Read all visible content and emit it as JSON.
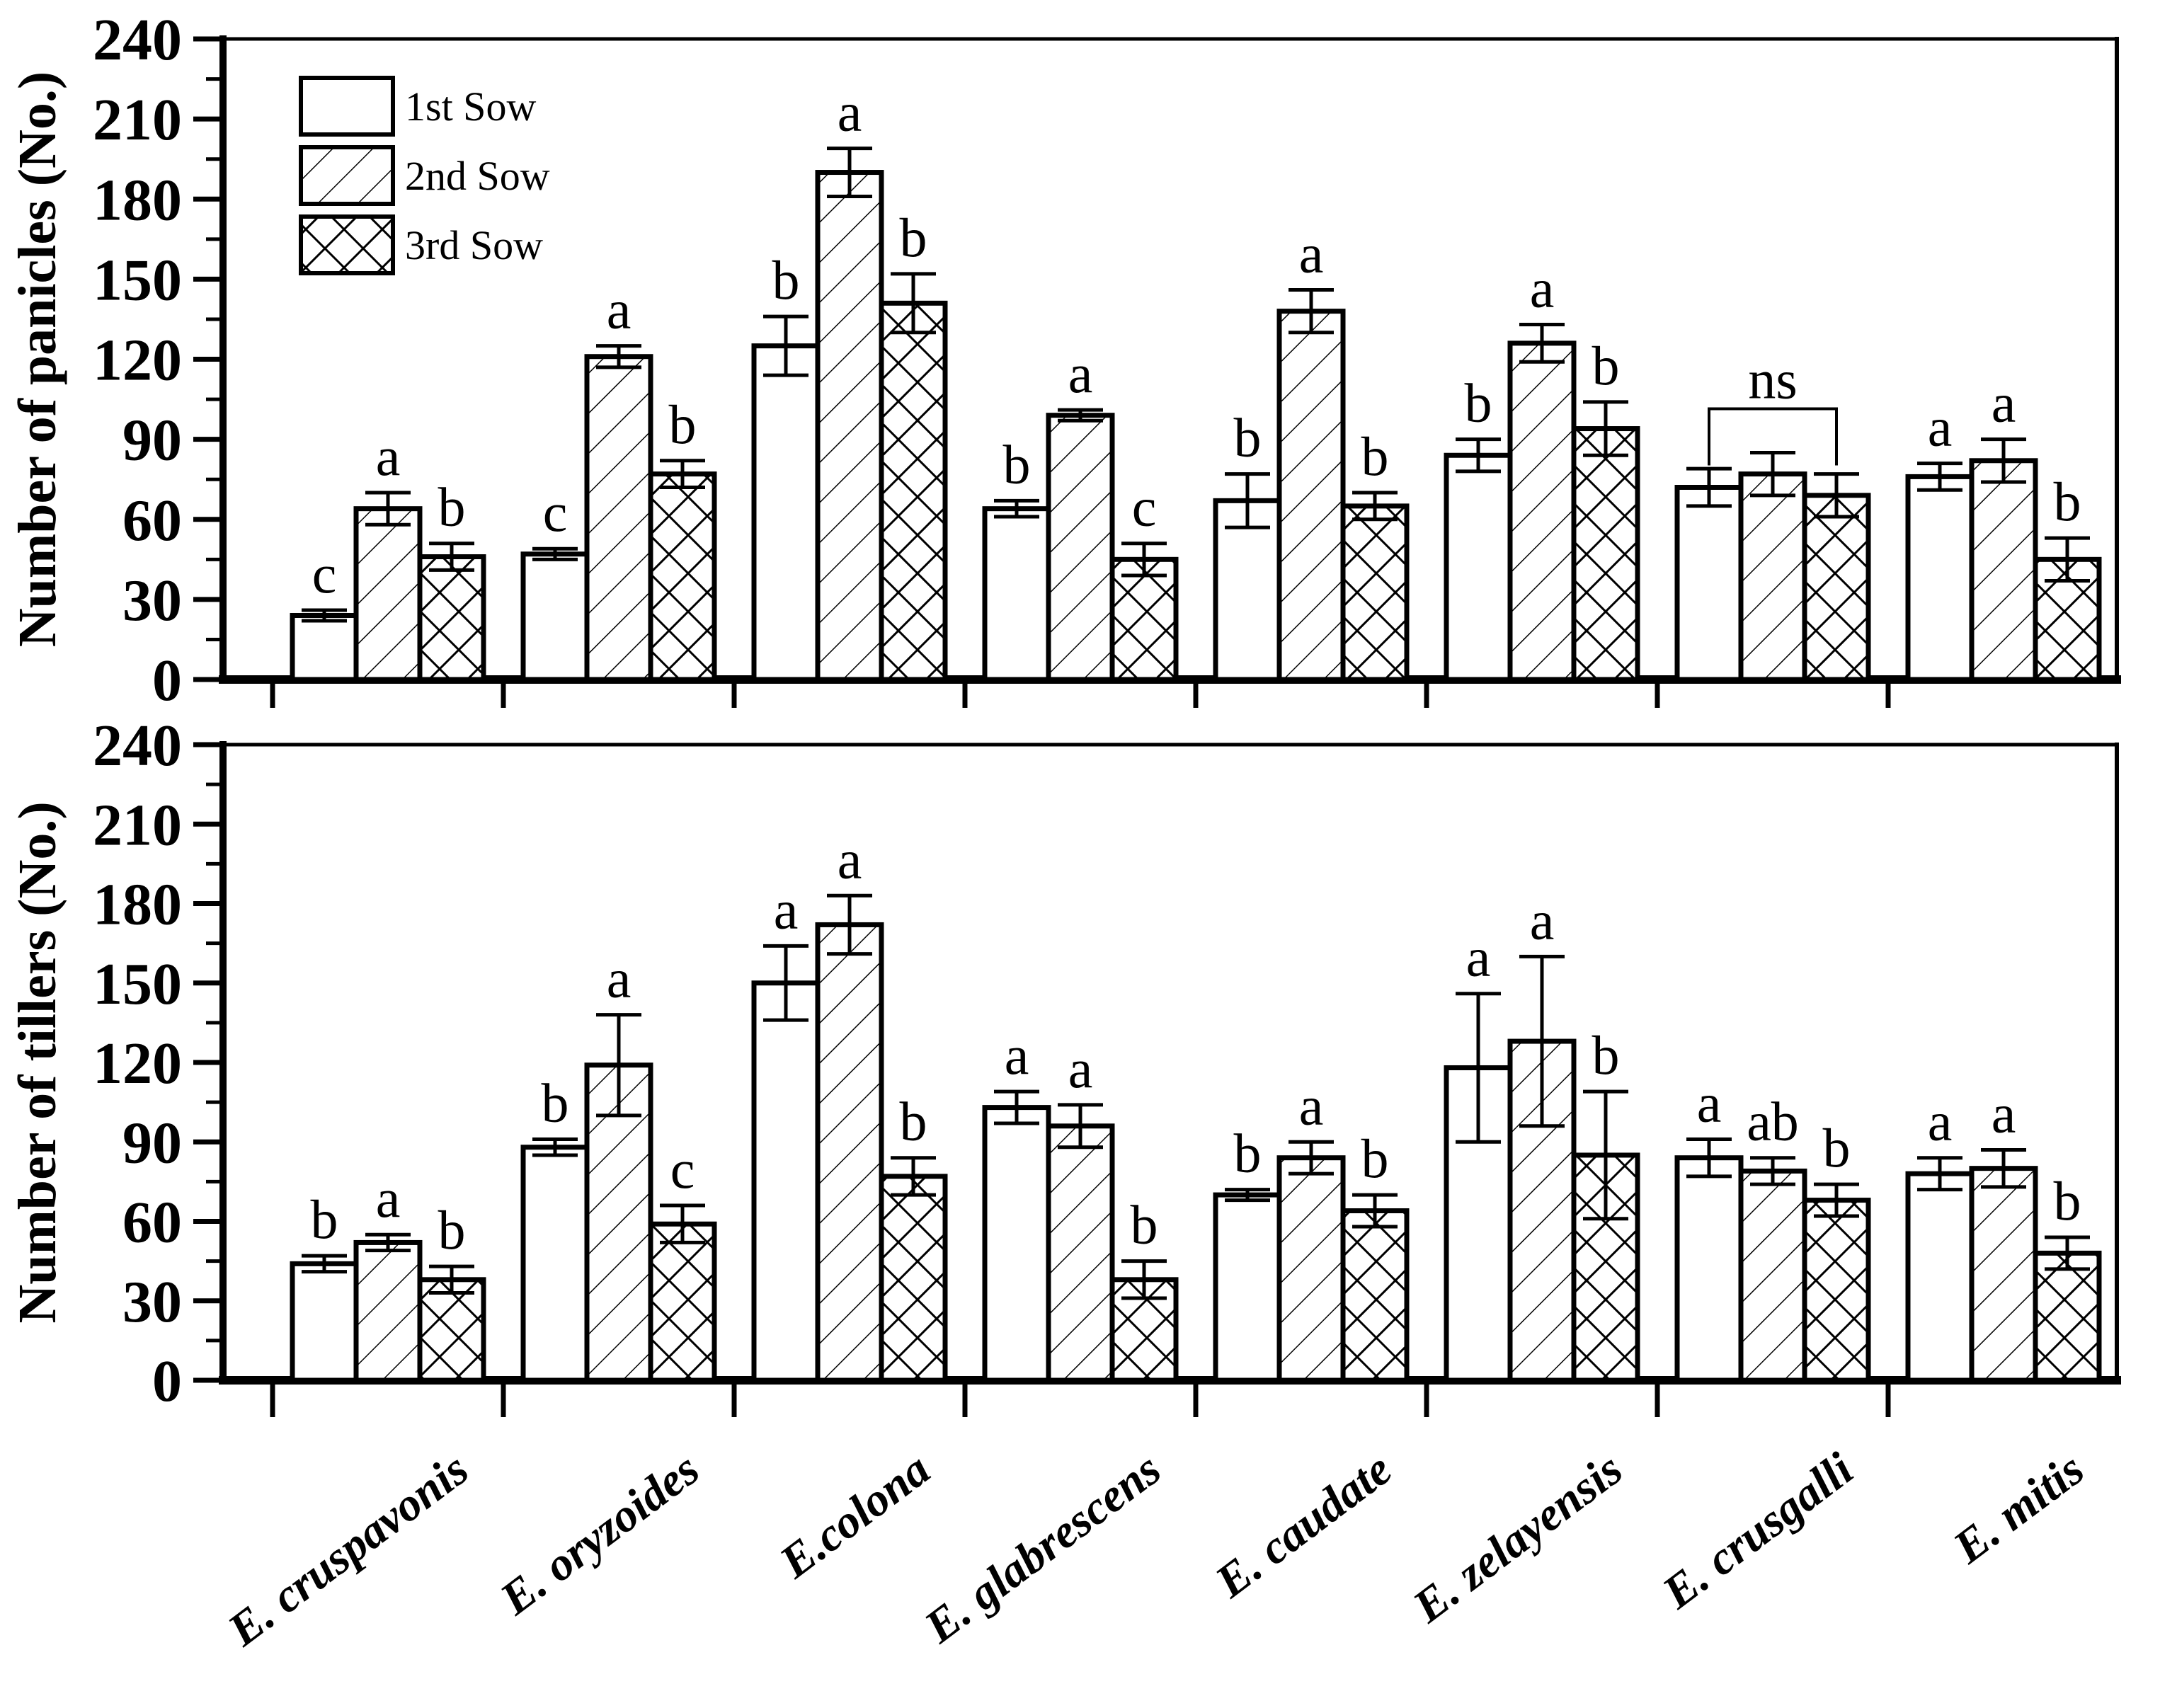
{
  "figure": {
    "background": "#ffffff",
    "foreground": "#000000"
  },
  "legend": {
    "position": "top-left-inside-first-panel",
    "items": [
      {
        "label": "1st Sow",
        "pattern": "plain"
      },
      {
        "label": "2nd Sow",
        "pattern": "diagonal-hatch"
      },
      {
        "label": "3rd Sow",
        "pattern": "cross-hatch"
      }
    ]
  },
  "chart_data": [
    {
      "id": "panicles",
      "type": "bar",
      "title": "",
      "xlabel": "",
      "ylabel": "Number of panicles (No.)",
      "ylim": [
        0,
        240
      ],
      "ytick_step": 30,
      "yminor_step": 15,
      "grid": "off",
      "categories": [
        "E. cruspavonis",
        "E. oryzoides",
        "E.colona",
        "E. glabrescens",
        "E. caudate",
        "E. zelayensis",
        "E. crusgalli",
        "E. mitis"
      ],
      "series": [
        {
          "name": "1st Sow",
          "pattern": "plain",
          "values": [
            24,
            47,
            125,
            64,
            67,
            84,
            72,
            76
          ],
          "errors": [
            2,
            2,
            11,
            3,
            10,
            6,
            7,
            5
          ],
          "letters": [
            "c",
            "c",
            "b",
            "b",
            "b",
            "b",
            "",
            "a"
          ]
        },
        {
          "name": "2nd Sow",
          "pattern": "diagonal-hatch",
          "values": [
            64,
            121,
            190,
            99,
            138,
            126,
            77,
            82
          ],
          "errors": [
            6,
            4,
            9,
            2,
            8,
            7,
            8,
            8
          ],
          "letters": [
            "a",
            "a",
            "a",
            "a",
            "a",
            "a",
            "",
            "a"
          ]
        },
        {
          "name": "3rd Sow",
          "pattern": "cross-hatch",
          "values": [
            46,
            77,
            141,
            45,
            65,
            94,
            69,
            45
          ],
          "errors": [
            5,
            5,
            11,
            6,
            5,
            10,
            8,
            8
          ],
          "letters": [
            "b",
            "b",
            "b",
            "c",
            "b",
            "b",
            "",
            "b"
          ]
        }
      ],
      "annotations": [
        {
          "type": "ns-bracket",
          "category_index": 6,
          "label": "ns"
        }
      ]
    },
    {
      "id": "tillers",
      "type": "bar",
      "title": "",
      "xlabel": "",
      "ylabel": "Number of tillers (No.)",
      "ylim": [
        0,
        240
      ],
      "ytick_step": 30,
      "yminor_step": 15,
      "grid": "off",
      "categories": [
        "E. cruspavonis",
        "E. oryzoides",
        "E.colona",
        "E. glabrescens",
        "E. caudate",
        "E. zelayensis",
        "E. crusgalli",
        "E. mitis"
      ],
      "series": [
        {
          "name": "1st Sow",
          "pattern": "plain",
          "values": [
            44,
            88,
            150,
            103,
            70,
            118,
            84,
            78
          ],
          "errors": [
            3,
            3,
            14,
            6,
            2,
            28,
            7,
            6
          ],
          "letters": [
            "b",
            "b",
            "a",
            "a",
            "b",
            "a",
            "a",
            "a"
          ]
        },
        {
          "name": "2nd Sow",
          "pattern": "diagonal-hatch",
          "values": [
            52,
            119,
            172,
            96,
            84,
            128,
            79,
            80
          ],
          "errors": [
            3,
            19,
            11,
            8,
            6,
            32,
            5,
            7
          ],
          "letters": [
            "a",
            "a",
            "a",
            "a",
            "a",
            "a",
            "ab",
            "a"
          ]
        },
        {
          "name": "3rd Sow",
          "pattern": "cross-hatch",
          "values": [
            38,
            59,
            77,
            38,
            64,
            85,
            68,
            48
          ],
          "errors": [
            5,
            7,
            7,
            7,
            6,
            24,
            6,
            6
          ],
          "letters": [
            "b",
            "c",
            "b",
            "b",
            "b",
            "b",
            "b",
            "b"
          ]
        }
      ],
      "annotations": []
    }
  ]
}
